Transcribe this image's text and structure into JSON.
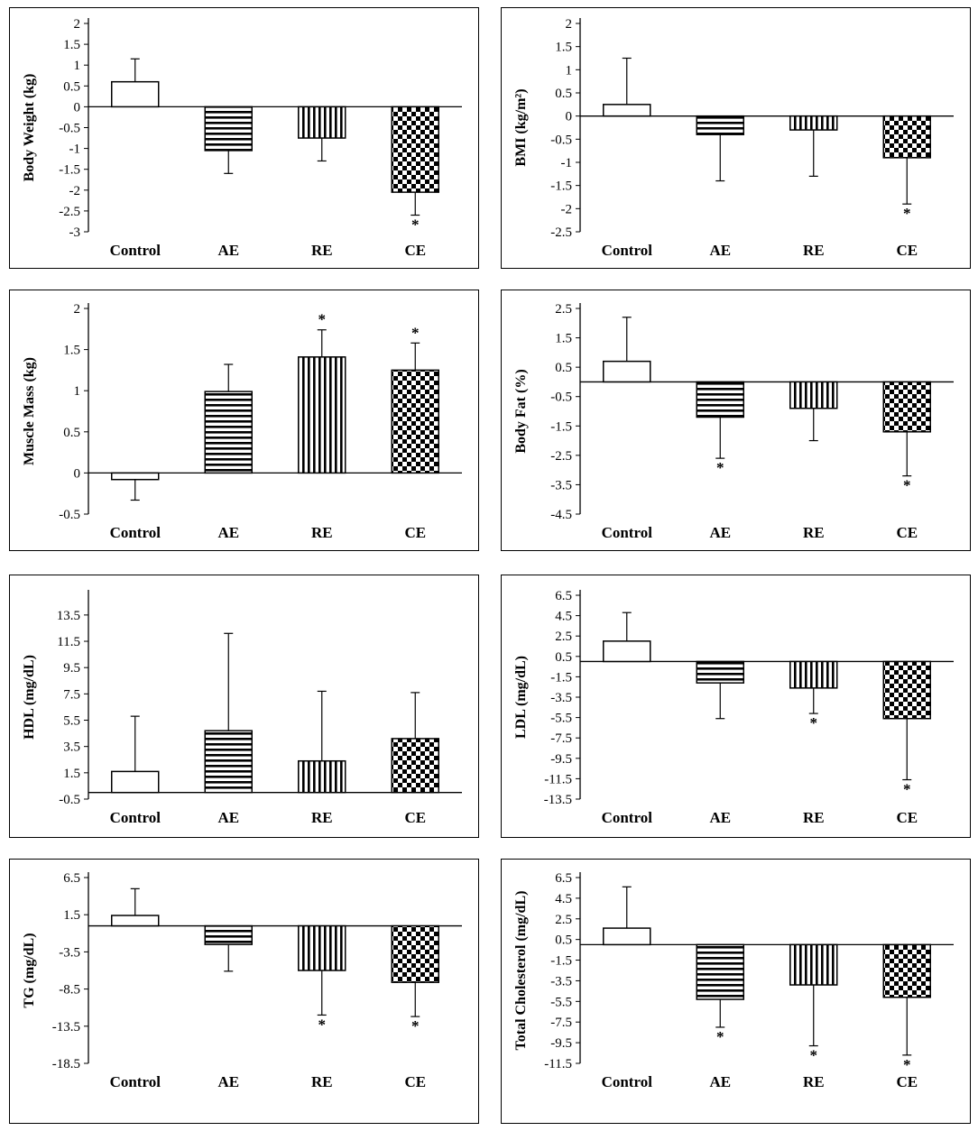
{
  "chart_data": [
    {
      "id": "bw",
      "type": "bar",
      "title": "",
      "ylabel": "Body Weight (kg)",
      "yticks": [
        2,
        1.5,
        1,
        0.5,
        0,
        -0.5,
        -1,
        -1.5,
        -2,
        -2.5,
        -3
      ],
      "ylim": [
        -3,
        2
      ],
      "categories": [
        "Control",
        "AE",
        "RE",
        "CE"
      ],
      "values": [
        0.6,
        -1.05,
        -0.75,
        -2.05
      ],
      "errors": [
        0.55,
        0.55,
        0.55,
        0.55
      ],
      "significant": [
        false,
        false,
        false,
        true
      ]
    },
    {
      "id": "bmi",
      "type": "bar",
      "title": "",
      "ylabel": "BMI (kg/m²)",
      "yticks": [
        2,
        1.5,
        1,
        0.5,
        0,
        -0.5,
        -1,
        -1.5,
        -2,
        -2.5
      ],
      "ylim": [
        -2.5,
        2
      ],
      "categories": [
        "Control",
        "AE",
        "RE",
        "CE"
      ],
      "values": [
        0.25,
        -0.4,
        -0.3,
        -0.9
      ],
      "errors": [
        1.0,
        1.0,
        1.0,
        1.0
      ],
      "significant": [
        false,
        false,
        false,
        true
      ]
    },
    {
      "id": "mm",
      "type": "bar",
      "title": "",
      "ylabel": "Muscle Mass (kg)",
      "yticks": [
        2,
        1.5,
        1,
        0.5,
        0,
        -0.5
      ],
      "ylim": [
        -0.5,
        2
      ],
      "categories": [
        "Control",
        "AE",
        "RE",
        "CE"
      ],
      "values": [
        -0.08,
        0.99,
        1.41,
        1.25
      ],
      "errors": [
        0.25,
        0.33,
        0.33,
        0.33
      ],
      "significant": [
        false,
        false,
        true,
        true
      ]
    },
    {
      "id": "bf",
      "type": "bar",
      "title": "",
      "ylabel": "Body Fat (%)",
      "yticks": [
        2.5,
        1.5,
        0.5,
        -0.5,
        -1.5,
        -2.5,
        -3.5,
        -4.5
      ],
      "ylim": [
        -4.5,
        2.5
      ],
      "categories": [
        "Control",
        "AE",
        "RE",
        "CE"
      ],
      "values": [
        0.7,
        -1.2,
        -0.9,
        -1.7
      ],
      "errors": [
        1.5,
        1.4,
        1.1,
        1.5
      ],
      "significant": [
        false,
        true,
        false,
        true
      ]
    },
    {
      "id": "hdl",
      "type": "bar",
      "title": "",
      "ylabel": "HDL (mg/dL)",
      "yticks": [
        13.5,
        11.5,
        9.5,
        7.5,
        5.5,
        3.5,
        1.5,
        -0.5
      ],
      "ylim": [
        -0.5,
        15
      ],
      "categories": [
        "Control",
        "AE",
        "RE",
        "CE"
      ],
      "values": [
        1.6,
        4.7,
        2.4,
        4.1
      ],
      "errors": [
        4.2,
        7.4,
        5.3,
        3.5
      ],
      "significant": [
        false,
        false,
        false,
        false
      ]
    },
    {
      "id": "ldl",
      "type": "bar",
      "title": "",
      "ylabel": "LDL (mg/dL)",
      "yticks": [
        6.5,
        4.5,
        2.5,
        0.5,
        -1.5,
        -3.5,
        -5.5,
        -7.5,
        -9.5,
        -11.5,
        -13.5
      ],
      "ylim": [
        -13.5,
        6.5
      ],
      "categories": [
        "Control",
        "AE",
        "RE",
        "CE"
      ],
      "values": [
        2.0,
        -2.1,
        -2.6,
        -5.6
      ],
      "errors": [
        2.8,
        3.5,
        2.5,
        6.0
      ],
      "significant": [
        false,
        false,
        true,
        true
      ]
    },
    {
      "id": "tg",
      "type": "bar",
      "title": "",
      "ylabel": "TG (mg/dL)",
      "yticks": [
        6.5,
        1.5,
        -3.5,
        -8.5,
        -13.5,
        -18.5
      ],
      "ylim": [
        -18.5,
        6.5
      ],
      "categories": [
        "Control",
        "AE",
        "RE",
        "CE"
      ],
      "values": [
        1.4,
        -2.5,
        -6.0,
        -7.6
      ],
      "errors": [
        3.6,
        3.6,
        6.0,
        4.6
      ],
      "significant": [
        false,
        false,
        true,
        true
      ]
    },
    {
      "id": "tc",
      "type": "bar",
      "title": "",
      "ylabel": "Total Cholesterol (mg/dL)",
      "yticks": [
        6.5,
        4.5,
        2.5,
        0.5,
        -1.5,
        -3.5,
        -5.5,
        -7.5,
        -9.5,
        -11.5
      ],
      "ylim": [
        -11.5,
        6.5
      ],
      "categories": [
        "Control",
        "AE",
        "RE",
        "CE"
      ],
      "values": [
        1.6,
        -5.3,
        -3.9,
        -5.1
      ],
      "errors": [
        4.0,
        2.7,
        5.9,
        5.6
      ],
      "significant": [
        false,
        true,
        true,
        true
      ]
    }
  ]
}
